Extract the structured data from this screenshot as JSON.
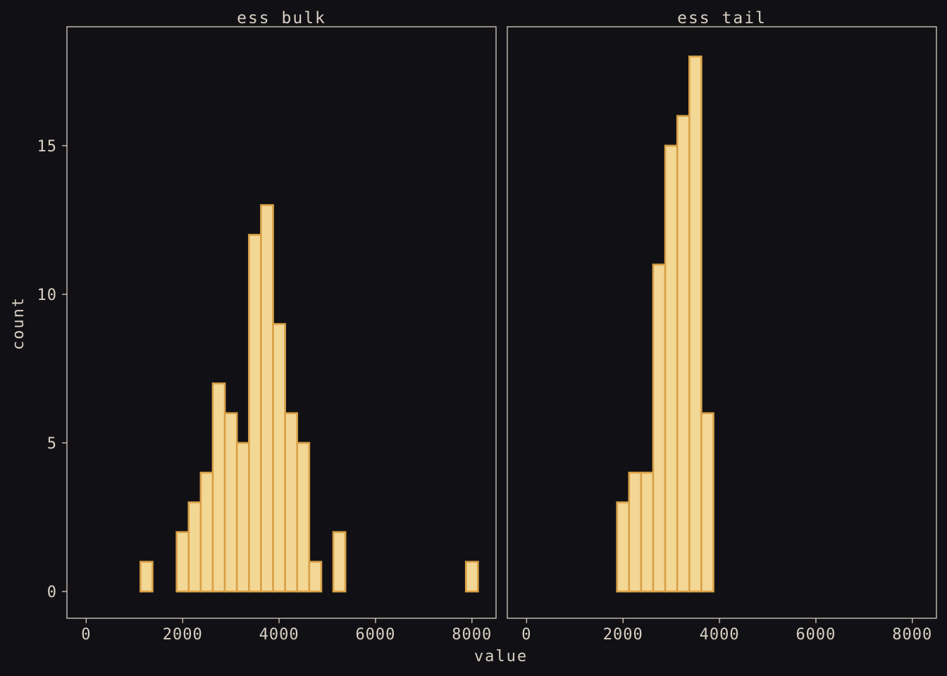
{
  "chart_data": {
    "type": "histogram",
    "layout": "facet_wrap 1x2",
    "xlabel": "value",
    "ylabel": "count",
    "xlim": [
      -400,
      8500
    ],
    "ylim": [
      -0.9,
      19
    ],
    "x_ticks": [
      0,
      2000,
      4000,
      6000,
      8000
    ],
    "y_ticks": [
      0,
      5,
      10,
      15
    ],
    "bin_width": 250,
    "colors": {
      "fill": "#f2d795",
      "outline": "#d9a046",
      "background": "#111115",
      "text": "#d9d0c3"
    },
    "panels": [
      {
        "title": "ess_bulk",
        "bins": [
          {
            "x0": 125,
            "x1": 375,
            "count": 0
          },
          {
            "x0": 375,
            "x1": 625,
            "count": 0
          },
          {
            "x0": 625,
            "x1": 875,
            "count": 0
          },
          {
            "x0": 875,
            "x1": 1125,
            "count": 0
          },
          {
            "x0": 1125,
            "x1": 1375,
            "count": 1
          },
          {
            "x0": 1375,
            "x1": 1625,
            "count": 0
          },
          {
            "x0": 1625,
            "x1": 1875,
            "count": 0
          },
          {
            "x0": 1875,
            "x1": 2125,
            "count": 2
          },
          {
            "x0": 2125,
            "x1": 2375,
            "count": 3
          },
          {
            "x0": 2375,
            "x1": 2625,
            "count": 4
          },
          {
            "x0": 2625,
            "x1": 2875,
            "count": 7
          },
          {
            "x0": 2875,
            "x1": 3125,
            "count": 6
          },
          {
            "x0": 3125,
            "x1": 3375,
            "count": 5
          },
          {
            "x0": 3375,
            "x1": 3625,
            "count": 12
          },
          {
            "x0": 3625,
            "x1": 3875,
            "count": 13
          },
          {
            "x0": 3875,
            "x1": 4125,
            "count": 9
          },
          {
            "x0": 4125,
            "x1": 4375,
            "count": 6
          },
          {
            "x0": 4375,
            "x1": 4625,
            "count": 5
          },
          {
            "x0": 4625,
            "x1": 4875,
            "count": 1
          },
          {
            "x0": 4875,
            "x1": 5125,
            "count": 0
          },
          {
            "x0": 5125,
            "x1": 5375,
            "count": 2
          },
          {
            "x0": 5375,
            "x1": 5625,
            "count": 0
          },
          {
            "x0": 5625,
            "x1": 5875,
            "count": 0
          },
          {
            "x0": 5875,
            "x1": 6125,
            "count": 0
          },
          {
            "x0": 6125,
            "x1": 6375,
            "count": 0
          },
          {
            "x0": 6375,
            "x1": 6625,
            "count": 0
          },
          {
            "x0": 6625,
            "x1": 6875,
            "count": 0
          },
          {
            "x0": 6875,
            "x1": 7125,
            "count": 0
          },
          {
            "x0": 7125,
            "x1": 7375,
            "count": 0
          },
          {
            "x0": 7375,
            "x1": 7625,
            "count": 0
          },
          {
            "x0": 7625,
            "x1": 7875,
            "count": 0
          },
          {
            "x0": 7875,
            "x1": 8125,
            "count": 1
          }
        ]
      },
      {
        "title": "ess_tail",
        "bins": [
          {
            "x0": 125,
            "x1": 375,
            "count": 0
          },
          {
            "x0": 375,
            "x1": 625,
            "count": 0
          },
          {
            "x0": 625,
            "x1": 875,
            "count": 0
          },
          {
            "x0": 875,
            "x1": 1125,
            "count": 0
          },
          {
            "x0": 1125,
            "x1": 1375,
            "count": 0
          },
          {
            "x0": 1375,
            "x1": 1625,
            "count": 0
          },
          {
            "x0": 1625,
            "x1": 1875,
            "count": 0
          },
          {
            "x0": 1875,
            "x1": 2125,
            "count": 3
          },
          {
            "x0": 2125,
            "x1": 2375,
            "count": 4
          },
          {
            "x0": 2375,
            "x1": 2625,
            "count": 4
          },
          {
            "x0": 2625,
            "x1": 2875,
            "count": 11
          },
          {
            "x0": 2875,
            "x1": 3125,
            "count": 15
          },
          {
            "x0": 3125,
            "x1": 3375,
            "count": 16
          },
          {
            "x0": 3375,
            "x1": 3625,
            "count": 18
          },
          {
            "x0": 3625,
            "x1": 3875,
            "count": 6
          },
          {
            "x0": 3875,
            "x1": 4125,
            "count": 0
          },
          {
            "x0": 4125,
            "x1": 4375,
            "count": 0
          },
          {
            "x0": 4375,
            "x1": 4625,
            "count": 0
          },
          {
            "x0": 4625,
            "x1": 4875,
            "count": 0
          },
          {
            "x0": 4875,
            "x1": 5125,
            "count": 0
          },
          {
            "x0": 5125,
            "x1": 5375,
            "count": 0
          },
          {
            "x0": 5375,
            "x1": 5625,
            "count": 0
          },
          {
            "x0": 5625,
            "x1": 5875,
            "count": 0
          },
          {
            "x0": 5875,
            "x1": 6125,
            "count": 0
          },
          {
            "x0": 6125,
            "x1": 6375,
            "count": 0
          },
          {
            "x0": 6375,
            "x1": 6625,
            "count": 0
          },
          {
            "x0": 6625,
            "x1": 6875,
            "count": 0
          },
          {
            "x0": 6875,
            "x1": 7125,
            "count": 0
          },
          {
            "x0": 7125,
            "x1": 7375,
            "count": 0
          },
          {
            "x0": 7375,
            "x1": 7625,
            "count": 0
          },
          {
            "x0": 7625,
            "x1": 7875,
            "count": 0
          },
          {
            "x0": 7875,
            "x1": 8125,
            "count": 0
          }
        ]
      }
    ]
  }
}
